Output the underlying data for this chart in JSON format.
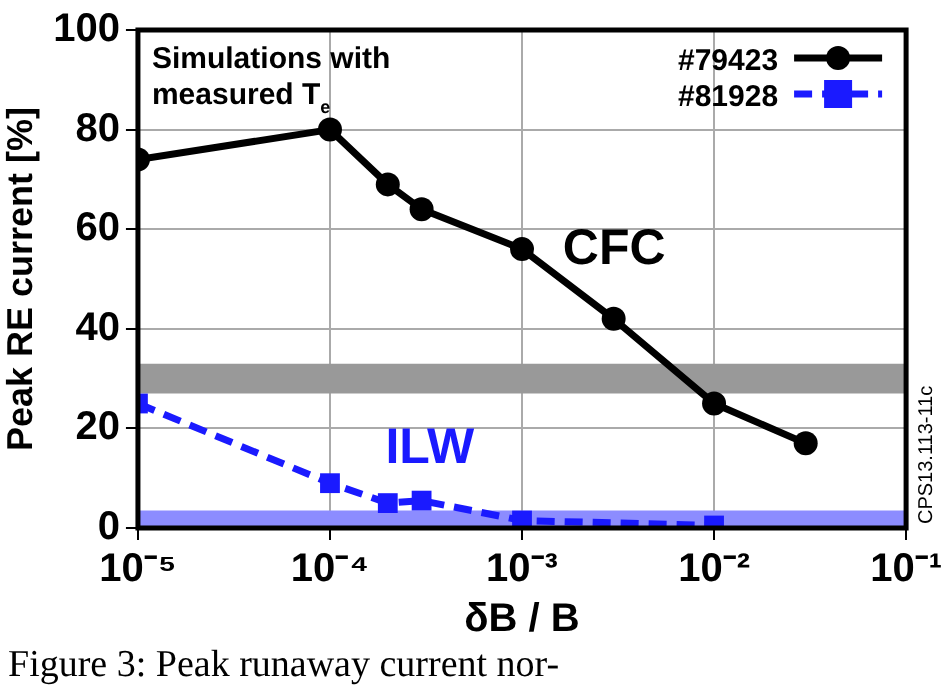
{
  "chart_data": {
    "type": "line",
    "xlabel": "δB / B",
    "ylabel": "Peak RE current [%]",
    "log": "x",
    "grid": true,
    "legend": "top right",
    "xlim": [
      1e-05,
      0.1
    ],
    "xticks": [
      {
        "value": 1e-05,
        "label": "10⁻⁵"
      },
      {
        "value": 0.0001,
        "label": "10⁻⁴"
      },
      {
        "value": 0.001,
        "label": "10⁻³"
      },
      {
        "value": 0.01,
        "label": "10⁻²"
      },
      {
        "value": 0.1,
        "label": "10⁻¹"
      }
    ],
    "ylim": [
      0,
      100
    ],
    "yticks": [
      0,
      20,
      40,
      60,
      80,
      100
    ],
    "series": [
      {
        "name": "#79423",
        "color": "#000000",
        "marker": "circle",
        "line_style": "solid",
        "x": [
          1e-05,
          0.0001,
          0.0002,
          0.0003,
          0.001,
          0.003,
          0.01,
          0.03
        ],
        "values": [
          74,
          80,
          69,
          64,
          56,
          42,
          25,
          17
        ]
      },
      {
        "name": "#81928",
        "color": "#1a1aff",
        "marker": "square",
        "line_style": "dashed",
        "x": [
          1e-05,
          0.0001,
          0.0002,
          0.0003,
          0.001,
          0.01
        ],
        "values": [
          25,
          9,
          5,
          5.5,
          1.5,
          0.5
        ]
      }
    ],
    "bands": [
      {
        "axis": "y",
        "from": 27,
        "to": 33,
        "color": "#999999"
      },
      {
        "axis": "y",
        "from": 0,
        "to": 3.5,
        "color": "#8c8cff"
      }
    ],
    "annotations": [
      "Simulations with measured T$_{e}$",
      "CPS13.113-11c",
      "Figure 3: Peak runaway current nor-",
      "CFC",
      "ILW"
    ]
  }
}
